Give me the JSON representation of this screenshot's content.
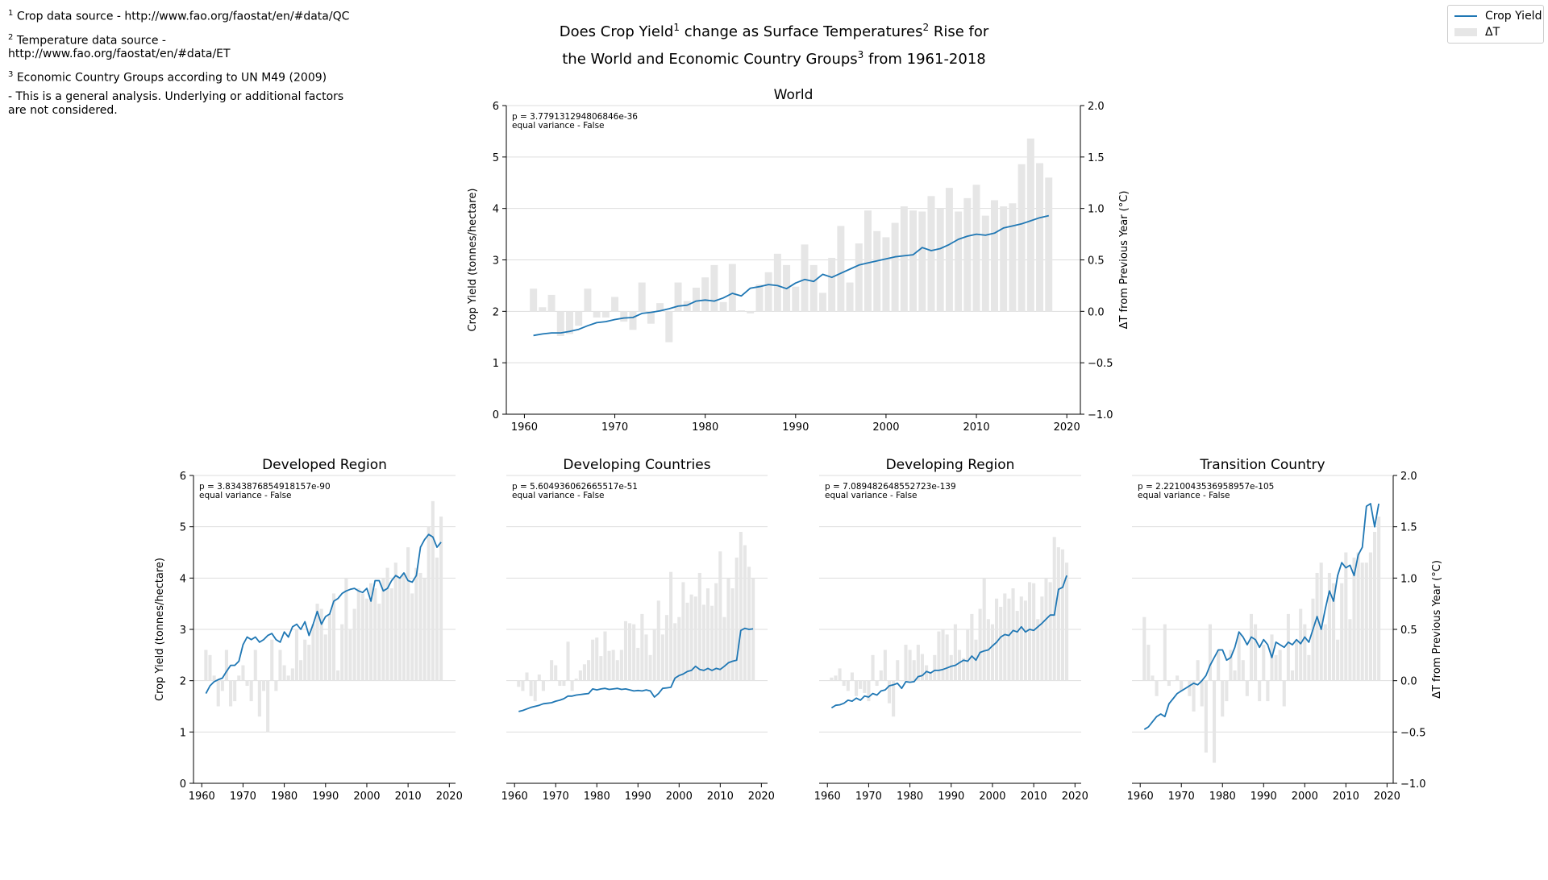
{
  "notes": {
    "note1_mark": "1",
    "note1": "Crop data source - http://www.fao.org/faostat/en/#data/QC",
    "note2_mark": "2",
    "note2": "Temperature data source - http://www.fao.org/faostat/en/#data/ET",
    "note3_mark": "3",
    "note3": "Economic Country Groups according to UN M49 (2009)",
    "note4": "- This is a general analysis. Underlying or additional factors are not considered."
  },
  "figure_title": {
    "part1": "Does Crop Yield",
    "sup1": "1",
    "part2": " change as Surface Temperatures",
    "sup2": "2",
    "part3": " Rise for",
    "part4": "the World and Economic Country Groups",
    "sup3": "3",
    "part5": " from 1961-2018"
  },
  "legend": {
    "line_label": "Crop Yield",
    "bar_label": "ΔT"
  },
  "colors": {
    "line": "#1f77b4",
    "bar": "#e6e6e6",
    "grid": "#dddddd",
    "axis": "#000000"
  },
  "chart_data": [
    {
      "type": "line+bar",
      "title": "World",
      "annotation": [
        "p = 3.779131294806846e-36",
        "equal variance - False"
      ],
      "ylabel": "Crop Yield (tonnes/hectare)",
      "y2label": "ΔT from Previous Year (°C)",
      "xlim": [
        1958,
        2021.5
      ],
      "ylim": [
        0,
        6
      ],
      "y2lim": [
        -1.0,
        2.0
      ],
      "xticks": [
        1960,
        1970,
        1980,
        1990,
        2000,
        2010,
        2020
      ],
      "yticks": [
        0,
        1,
        2,
        3,
        4,
        5,
        6
      ],
      "y2ticks": [
        -1.0,
        -0.5,
        0.0,
        0.5,
        1.0,
        1.5,
        2.0
      ],
      "y2ticklabels": [
        "−1.0",
        "−0.5",
        "0.0",
        "0.5",
        "1.0",
        "1.5",
        "2.0"
      ],
      "grid": "y",
      "years_start": 1961,
      "crop_yield": [
        1.53,
        1.56,
        1.58,
        1.58,
        1.61,
        1.65,
        1.72,
        1.78,
        1.8,
        1.84,
        1.87,
        1.88,
        1.96,
        1.98,
        2.01,
        2.05,
        2.1,
        2.12,
        2.2,
        2.22,
        2.2,
        2.26,
        2.35,
        2.3,
        2.45,
        2.48,
        2.52,
        2.5,
        2.44,
        2.55,
        2.62,
        2.58,
        2.72,
        2.66,
        2.74,
        2.82,
        2.9,
        2.94,
        2.98,
        3.02,
        3.06,
        3.08,
        3.1,
        3.24,
        3.18,
        3.22,
        3.3,
        3.4,
        3.46,
        3.5,
        3.48,
        3.52,
        3.62,
        3.66,
        3.7,
        3.76,
        3.82,
        3.86
      ],
      "delta_t": [
        0.22,
        0.04,
        0.16,
        -0.24,
        -0.22,
        -0.14,
        0.22,
        -0.06,
        -0.06,
        0.14,
        -0.1,
        -0.18,
        0.28,
        -0.12,
        0.08,
        -0.3,
        0.28,
        0.1,
        0.23,
        0.33,
        0.45,
        0.09,
        0.46,
        0.01,
        -0.02,
        0.26,
        0.38,
        0.56,
        0.45,
        0.24,
        0.65,
        0.45,
        0.18,
        0.52,
        0.83,
        0.28,
        0.66,
        0.98,
        0.78,
        0.72,
        0.86,
        1.02,
        0.98,
        0.97,
        1.12,
        1.0,
        1.2,
        0.97,
        1.1,
        1.23,
        0.93,
        1.08,
        1.02,
        1.05,
        1.43,
        1.68,
        1.44,
        1.3
      ]
    },
    {
      "type": "line+bar",
      "title": "Developed Region",
      "annotation": [
        "p = 3.8343876854918157e-90",
        "equal variance - False"
      ],
      "ylabel": "Crop Yield (tonnes/hectare)",
      "xlim": [
        1958,
        2021.5
      ],
      "ylim": [
        0,
        6
      ],
      "y2lim": [
        -1.0,
        2.0
      ],
      "xticks": [
        1960,
        1970,
        1980,
        1990,
        2000,
        2010,
        2020
      ],
      "yticks": [
        0,
        1,
        2,
        3,
        4,
        5,
        6
      ],
      "grid": "y",
      "years_start": 1961,
      "crop_yield": [
        1.75,
        1.9,
        1.98,
        2.02,
        2.05,
        2.18,
        2.3,
        2.3,
        2.38,
        2.7,
        2.85,
        2.8,
        2.85,
        2.75,
        2.8,
        2.88,
        2.92,
        2.8,
        2.75,
        2.95,
        2.85,
        3.05,
        3.1,
        3.0,
        3.15,
        2.88,
        3.1,
        3.35,
        3.1,
        3.25,
        3.3,
        3.55,
        3.6,
        3.7,
        3.75,
        3.78,
        3.8,
        3.75,
        3.72,
        3.8,
        3.55,
        3.95,
        3.95,
        3.75,
        3.8,
        3.95,
        4.05,
        4.0,
        4.1,
        3.95,
        3.92,
        4.05,
        4.6,
        4.75,
        4.85,
        4.8,
        4.6,
        4.7
      ],
      "delta_t": [
        0.3,
        0.25,
        0.05,
        -0.25,
        -0.1,
        0.3,
        -0.25,
        -0.2,
        0.05,
        0.15,
        -0.05,
        -0.2,
        0.3,
        -0.35,
        -0.1,
        -0.5,
        0.4,
        -0.1,
        0.3,
        0.15,
        0.05,
        0.12,
        0.5,
        0.2,
        0.4,
        0.35,
        0.55,
        0.75,
        0.7,
        0.45,
        0.65,
        0.85,
        0.1,
        0.55,
        1.0,
        0.5,
        0.7,
        0.9,
        0.85,
        0.8,
        0.95,
        0.9,
        0.75,
        1.0,
        1.1,
        0.9,
        1.15,
        1.0,
        1.05,
        1.3,
        0.85,
        1.1,
        1.05,
        1.0,
        1.5,
        1.75,
        1.2,
        1.6
      ]
    },
    {
      "type": "line+bar",
      "title": "Developing Countries",
      "annotation": [
        "p = 5.604936062665517e-51",
        "equal variance - False"
      ],
      "xlim": [
        1958,
        2021.5
      ],
      "ylim": [
        0,
        6
      ],
      "y2lim": [
        -1.0,
        2.0
      ],
      "xticks": [
        1960,
        1970,
        1980,
        1990,
        2000,
        2010,
        2020
      ],
      "grid": "y",
      "years_start": 1961,
      "crop_yield": [
        1.4,
        1.42,
        1.45,
        1.48,
        1.5,
        1.52,
        1.55,
        1.56,
        1.57,
        1.6,
        1.62,
        1.65,
        1.7,
        1.7,
        1.72,
        1.73,
        1.74,
        1.75,
        1.84,
        1.82,
        1.84,
        1.85,
        1.83,
        1.84,
        1.85,
        1.83,
        1.84,
        1.82,
        1.8,
        1.81,
        1.8,
        1.82,
        1.8,
        1.68,
        1.75,
        1.85,
        1.86,
        1.87,
        2.05,
        2.1,
        2.13,
        2.18,
        2.2,
        2.28,
        2.22,
        2.2,
        2.24,
        2.2,
        2.24,
        2.22,
        2.28,
        2.35,
        2.38,
        2.4,
        2.98,
        3.02,
        3.0,
        3.01
      ],
      "delta_t": [
        -0.06,
        -0.1,
        0.08,
        -0.15,
        -0.2,
        0.06,
        -0.1,
        0.0,
        0.2,
        0.15,
        -0.05,
        -0.05,
        0.38,
        -0.1,
        0.02,
        0.1,
        0.16,
        0.2,
        0.4,
        0.42,
        0.24,
        0.48,
        0.29,
        0.3,
        0.2,
        0.3,
        0.58,
        0.56,
        0.55,
        0.32,
        0.65,
        0.45,
        0.25,
        0.5,
        0.78,
        0.45,
        0.64,
        1.06,
        0.56,
        0.62,
        0.96,
        0.76,
        0.84,
        0.82,
        1.05,
        0.74,
        0.9,
        0.73,
        0.95,
        1.26,
        0.62,
        1.0,
        0.9,
        1.2,
        1.45,
        1.32,
        1.11,
        1.0
      ]
    },
    {
      "type": "line+bar",
      "title": "Developing Region",
      "annotation": [
        "p = 7.089482648552723e-139",
        "equal variance - False"
      ],
      "xlim": [
        1958,
        2021.5
      ],
      "ylim": [
        0,
        6
      ],
      "y2lim": [
        -1.0,
        2.0
      ],
      "xticks": [
        1960,
        1970,
        1980,
        1990,
        2000,
        2010,
        2020
      ],
      "grid": "y",
      "years_start": 1961,
      "crop_yield": [
        1.47,
        1.52,
        1.53,
        1.56,
        1.62,
        1.6,
        1.66,
        1.62,
        1.7,
        1.68,
        1.75,
        1.72,
        1.8,
        1.82,
        1.9,
        1.92,
        1.95,
        1.85,
        1.98,
        1.97,
        1.98,
        2.08,
        2.1,
        2.18,
        2.15,
        2.2,
        2.2,
        2.22,
        2.25,
        2.28,
        2.3,
        2.35,
        2.4,
        2.38,
        2.48,
        2.4,
        2.55,
        2.58,
        2.6,
        2.68,
        2.75,
        2.85,
        2.9,
        2.88,
        2.98,
        2.95,
        3.05,
        2.95,
        3.0,
        2.98,
        3.05,
        3.12,
        3.2,
        3.28,
        3.28,
        3.78,
        3.82,
        4.05
      ],
      "delta_t": [
        0.03,
        0.05,
        0.12,
        -0.05,
        -0.1,
        0.08,
        -0.15,
        -0.08,
        -0.12,
        -0.2,
        0.25,
        -0.05,
        0.1,
        0.3,
        -0.22,
        -0.35,
        0.2,
        0.0,
        0.35,
        0.3,
        0.2,
        0.35,
        0.26,
        0.15,
        0.08,
        0.25,
        0.48,
        0.5,
        0.45,
        0.25,
        0.55,
        0.3,
        0.22,
        0.5,
        0.65,
        0.4,
        0.7,
        1.0,
        0.6,
        0.55,
        0.8,
        0.72,
        0.85,
        0.8,
        0.9,
        0.68,
        0.82,
        0.78,
        0.96,
        0.95,
        0.6,
        0.82,
        1.0,
        0.96,
        1.4,
        1.3,
        1.28,
        1.15
      ]
    },
    {
      "type": "line+bar",
      "title": "Transition Country",
      "annotation": [
        "p = 2.2210043536958957e-105",
        "equal variance - False"
      ],
      "y2label": "ΔT from Previous Year (°C)",
      "xlim": [
        1958,
        2021.5
      ],
      "ylim": [
        0,
        6
      ],
      "y2lim": [
        -1.0,
        2.0
      ],
      "xticks": [
        1960,
        1970,
        1980,
        1990,
        2000,
        2010,
        2020
      ],
      "y2ticks": [
        -1.0,
        -0.5,
        0.0,
        0.5,
        1.0,
        1.5,
        2.0
      ],
      "y2ticklabels": [
        "−1.0",
        "−0.5",
        "0.0",
        "0.5",
        "1.0",
        "1.5",
        "2.0"
      ],
      "grid": "y",
      "years_start": 1961,
      "crop_yield": [
        1.05,
        1.1,
        1.2,
        1.3,
        1.35,
        1.3,
        1.55,
        1.65,
        1.75,
        1.8,
        1.85,
        1.9,
        1.95,
        1.92,
        2.0,
        2.1,
        2.3,
        2.45,
        2.6,
        2.6,
        2.4,
        2.45,
        2.65,
        2.95,
        2.85,
        2.7,
        2.85,
        2.8,
        2.65,
        2.8,
        2.7,
        2.45,
        2.75,
        2.7,
        2.65,
        2.75,
        2.7,
        2.8,
        2.72,
        2.85,
        2.75,
        3.0,
        3.25,
        3.0,
        3.4,
        3.75,
        3.55,
        4.05,
        4.3,
        4.2,
        4.25,
        4.05,
        4.45,
        4.6,
        5.4,
        5.45,
        5.0,
        5.45
      ],
      "delta_t": [
        0.62,
        0.35,
        0.05,
        -0.15,
        0.0,
        0.55,
        -0.05,
        0.0,
        0.05,
        -0.1,
        0.0,
        -0.15,
        -0.3,
        0.2,
        -0.25,
        -0.7,
        0.55,
        -0.8,
        0.3,
        -0.35,
        -0.2,
        0.3,
        0.1,
        0.45,
        0.2,
        -0.15,
        0.65,
        0.55,
        -0.2,
        0.35,
        -0.2,
        0.45,
        0.25,
        0.3,
        -0.25,
        0.65,
        0.1,
        0.4,
        0.7,
        0.55,
        0.25,
        0.8,
        1.05,
        1.15,
        0.55,
        1.05,
        0.95,
        0.4,
        0.95,
        1.25,
        0.6,
        1.2,
        1.25,
        1.15,
        1.15,
        1.25,
        1.45,
        1.6
      ]
    }
  ]
}
